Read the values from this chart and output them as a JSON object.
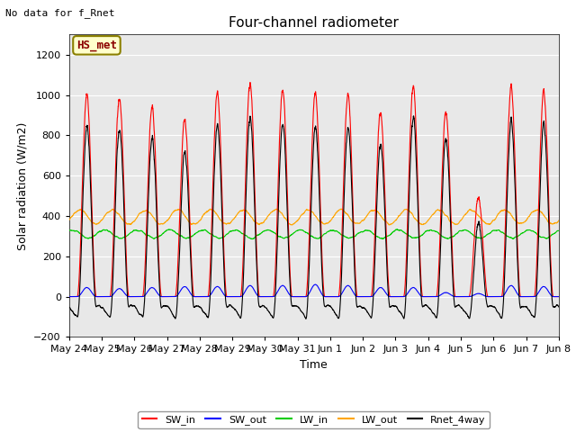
{
  "title": "Four-channel radiometer",
  "top_left_text": "No data for f_Rnet",
  "box_label": "HS_met",
  "ylabel": "Solar radiation (W/m2)",
  "xlabel": "Time",
  "ylim": [
    -200,
    1300
  ],
  "yticks": [
    -200,
    0,
    200,
    400,
    600,
    800,
    1000,
    1200
  ],
  "xtick_labels": [
    "May 24",
    "May 25",
    "May 26",
    "May 27",
    "May 28",
    "May 29",
    "May 30",
    "May 31",
    "Jun 1",
    "Jun 2",
    "Jun 3",
    "Jun 4",
    "Jun 5",
    "Jun 6",
    "Jun 7",
    "Jun 8"
  ],
  "num_days": 15,
  "colors": {
    "SW_in": "#ff0000",
    "SW_out": "#0000ff",
    "LW_in": "#00cc00",
    "LW_out": "#ffa500",
    "Rnet_4way": "#000000"
  },
  "background_color": "#ffffff",
  "plot_bg_color": "#e8e8e8",
  "title_fontsize": 11,
  "label_fontsize": 9,
  "tick_fontsize": 8,
  "points_per_day": 288,
  "sw_in_peaks": [
    1000,
    990,
    945,
    870,
    1010,
    1060,
    1025,
    1010,
    1000,
    910,
    1050,
    910,
    490,
    1040,
    1025
  ],
  "sw_out_peaks": [
    45,
    40,
    45,
    50,
    50,
    55,
    55,
    60,
    55,
    45,
    45,
    20,
    15,
    55,
    50
  ],
  "lw_in_base": 310,
  "lw_out_base": 395,
  "rnet_night": -100
}
